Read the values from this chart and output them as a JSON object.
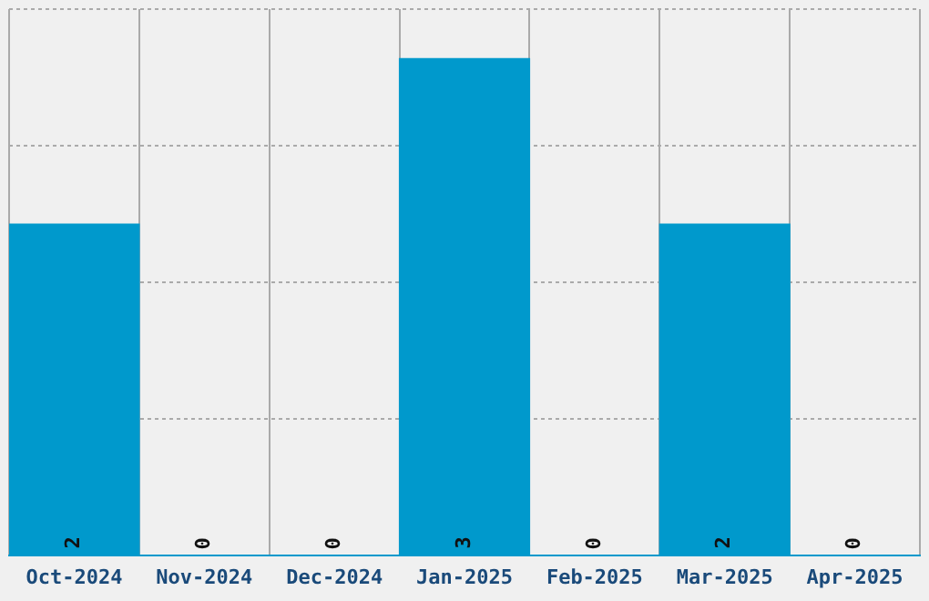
{
  "chart_data": {
    "type": "bar",
    "categories": [
      "Oct-2024",
      "Nov-2024",
      "Dec-2024",
      "Jan-2025",
      "Feb-2025",
      "Mar-2025",
      "Apr-2025"
    ],
    "values": [
      2,
      0,
      0,
      3,
      0,
      2,
      0
    ],
    "color": "#0099cc",
    "ylim": [
      0,
      3.3
    ],
    "yticks": [
      {
        "value": 0,
        "label": null
      },
      {
        "value": 0.825,
        "label": null
      },
      {
        "value": 1.65,
        "label": null
      },
      {
        "value": 2.475,
        "label": null
      },
      {
        "value": 3.3,
        "label": null
      }
    ],
    "grid": true,
    "tick_labels": "x",
    "data_labels": true
  }
}
